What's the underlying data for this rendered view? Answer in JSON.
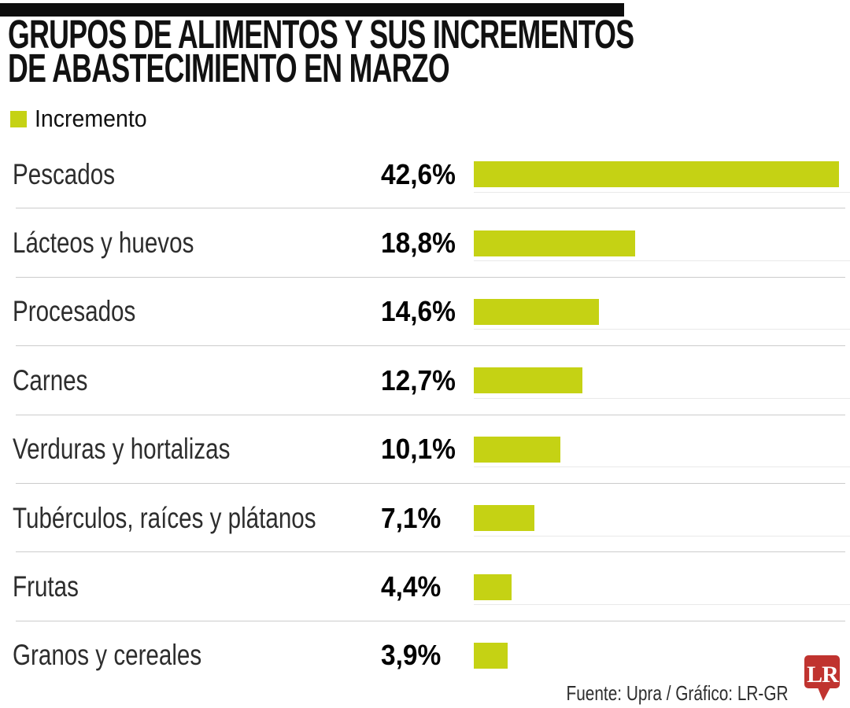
{
  "header": {
    "title_line1": "GRUPOS DE ALIMENTOS Y SUS INCREMENTOS",
    "title_line2": "DE ABASTECIMIENTO EN MARZO"
  },
  "legend": {
    "label": "Incremento"
  },
  "chart_data": {
    "type": "bar",
    "orientation": "horizontal",
    "title": "Grupos de alimentos y sus incrementos de abastecimiento en marzo",
    "legend_entries": [
      "Incremento"
    ],
    "legend_position": "top-left",
    "grid": false,
    "categories": [
      "Pescados",
      "Lácteos y huevos",
      "Procesados",
      "Carnes",
      "Verduras y hortalizas",
      "Tubérculos, raíces y plátanos",
      "Frutas",
      "Granos y cereales"
    ],
    "values": [
      42.6,
      18.8,
      14.6,
      12.7,
      10.1,
      7.1,
      4.4,
      3.9
    ],
    "value_labels": [
      "42,6%",
      "18,8%",
      "14,6%",
      "12,7%",
      "10,1%",
      "7,1%",
      "4,4%",
      "3,9%"
    ],
    "unit": "%",
    "xlim": [
      0,
      44
    ],
    "bar_color": "#c5d214"
  },
  "footer": {
    "source": "Fuente: Upra / Gráfico: LR-GR",
    "logo_text": "LR",
    "logo_color": "#c0332f"
  },
  "colors": {
    "accent_green": "#c5d214",
    "topbar": "#0d0d0d",
    "divider": "#cccccc",
    "track_line": "#e9e9e9"
  }
}
